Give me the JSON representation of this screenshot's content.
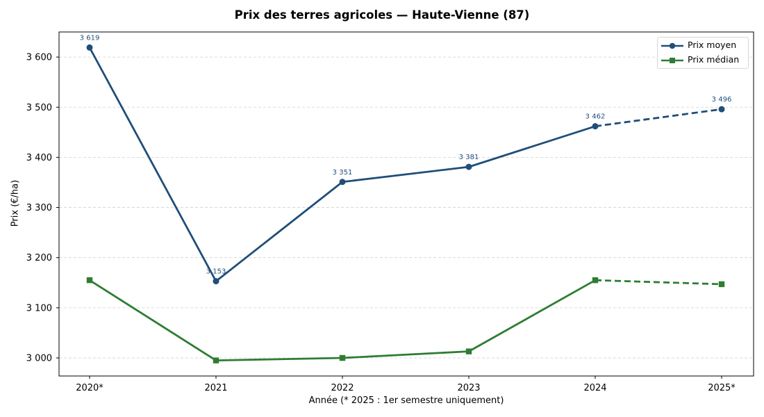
{
  "chart_data": {
    "type": "line",
    "title": "Prix des terres agricoles — Haute-Vienne (87)",
    "xlabel": "Année (* 2025 : 1er semestre uniquement)",
    "ylabel": "Prix (€/ha)",
    "categories": [
      "2020*",
      "2021",
      "2022",
      "2023",
      "2024",
      "2025*"
    ],
    "ylim": [
      2965,
      3650
    ],
    "yticks": [
      3000,
      3100,
      3200,
      3300,
      3400,
      3500,
      3600
    ],
    "ytick_labels": [
      "3 000",
      "3 100",
      "3 200",
      "3 300",
      "3 400",
      "3 500",
      "3 600"
    ],
    "grid": "y-dashed",
    "legend_position": "upper right",
    "series": [
      {
        "name": "Prix moyen",
        "color": "#1f4e79",
        "marker": "circle",
        "values": [
          3619,
          3153,
          3351,
          3381,
          3462,
          3496
        ],
        "labels": [
          "3 619",
          "3 153",
          "3 351",
          "3 381",
          "3 462",
          "3 496"
        ],
        "dashed_from_index": 4
      },
      {
        "name": "Prix médian",
        "color": "#2e7d32",
        "marker": "square",
        "values": [
          3155,
          2995,
          3000,
          3013,
          3155,
          3147
        ],
        "dashed_from_index": 4
      }
    ]
  },
  "legend": {
    "items": [
      {
        "label": "Prix moyen"
      },
      {
        "label": "Prix médian"
      }
    ]
  }
}
